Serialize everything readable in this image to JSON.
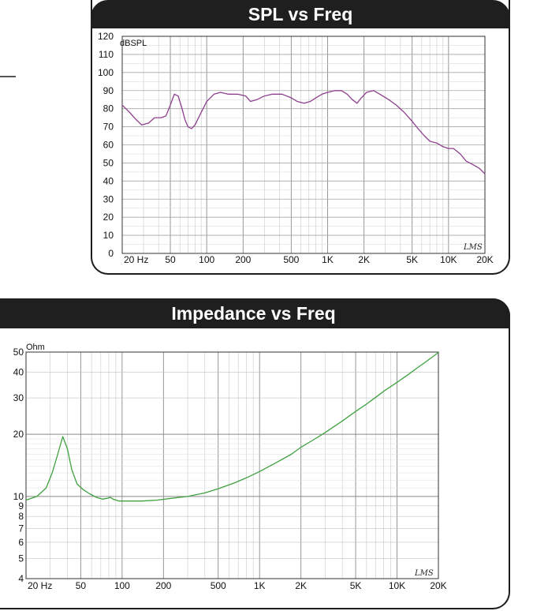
{
  "chart_data": [
    {
      "type": "line",
      "title": "SPL vs Freq",
      "ylabel": "dBSPL",
      "xlabel": "",
      "xscale": "log",
      "xlim": [
        20,
        20000
      ],
      "ylim": [
        0,
        120
      ],
      "grid": true,
      "xticks": [
        {
          "v": 20,
          "label": "20  Hz"
        },
        {
          "v": 50,
          "label": "50"
        },
        {
          "v": 100,
          "label": "100"
        },
        {
          "v": 200,
          "label": "200"
        },
        {
          "v": 500,
          "label": "500"
        },
        {
          "v": 1000,
          "label": "1K"
        },
        {
          "v": 2000,
          "label": "2K"
        },
        {
          "v": 5000,
          "label": "5K"
        },
        {
          "v": 10000,
          "label": "10K"
        },
        {
          "v": 20000,
          "label": "20K"
        }
      ],
      "yticks": [
        {
          "v": 0,
          "label": "0"
        },
        {
          "v": 10,
          "label": "10"
        },
        {
          "v": 20,
          "label": "20"
        },
        {
          "v": 30,
          "label": "30"
        },
        {
          "v": 40,
          "label": "40"
        },
        {
          "v": 50,
          "label": "50"
        },
        {
          "v": 60,
          "label": "60"
        },
        {
          "v": 70,
          "label": "70"
        },
        {
          "v": 80,
          "label": "80"
        },
        {
          "v": 90,
          "label": "90"
        },
        {
          "v": 100,
          "label": "100"
        },
        {
          "v": 110,
          "label": "110"
        },
        {
          "v": 120,
          "label": "120"
        }
      ],
      "series": [
        {
          "color": "#8e3f8e",
          "points": [
            [
              20,
              82
            ],
            [
              23,
              78
            ],
            [
              26,
              74
            ],
            [
              29,
              71
            ],
            [
              33,
              72
            ],
            [
              37,
              75
            ],
            [
              42,
              75
            ],
            [
              46,
              76
            ],
            [
              50,
              82
            ],
            [
              54,
              88
            ],
            [
              58,
              87
            ],
            [
              62,
              81
            ],
            [
              66,
              74
            ],
            [
              70,
              70
            ],
            [
              75,
              69
            ],
            [
              80,
              71
            ],
            [
              90,
              78
            ],
            [
              100,
              84
            ],
            [
              115,
              88
            ],
            [
              130,
              89
            ],
            [
              150,
              88
            ],
            [
              180,
              88
            ],
            [
              210,
              87
            ],
            [
              230,
              84
            ],
            [
              260,
              85
            ],
            [
              300,
              87
            ],
            [
              350,
              88
            ],
            [
              420,
              88
            ],
            [
              500,
              86
            ],
            [
              560,
              84
            ],
            [
              640,
              83
            ],
            [
              720,
              84
            ],
            [
              800,
              86
            ],
            [
              900,
              88
            ],
            [
              1000,
              89
            ],
            [
              1150,
              90
            ],
            [
              1300,
              90
            ],
            [
              1450,
              88
            ],
            [
              1600,
              85
            ],
            [
              1750,
              83
            ],
            [
              1900,
              86
            ],
            [
              2100,
              89
            ],
            [
              2400,
              90
            ],
            [
              2700,
              88
            ],
            [
              3200,
              85
            ],
            [
              3700,
              82
            ],
            [
              4300,
              78
            ],
            [
              5000,
              73
            ],
            [
              5600,
              69
            ],
            [
              6300,
              65
            ],
            [
              7000,
              62
            ],
            [
              8000,
              61
            ],
            [
              9000,
              59
            ],
            [
              10000,
              58
            ],
            [
              11000,
              58
            ],
            [
              12500,
              55
            ],
            [
              14000,
              51
            ],
            [
              16000,
              49
            ],
            [
              18000,
              47
            ],
            [
              20000,
              44
            ]
          ]
        }
      ],
      "logo": "LMS"
    },
    {
      "type": "line",
      "title": "Impedance vs Freq",
      "ylabel": "Ohm",
      "xlabel": "",
      "xscale": "log",
      "yscale": "log",
      "xlim": [
        20,
        20000
      ],
      "ylim": [
        4,
        50
      ],
      "grid": true,
      "xticks": [
        {
          "v": 20,
          "label": "20  Hz"
        },
        {
          "v": 50,
          "label": "50"
        },
        {
          "v": 100,
          "label": "100"
        },
        {
          "v": 200,
          "label": "200"
        },
        {
          "v": 500,
          "label": "500"
        },
        {
          "v": 1000,
          "label": "1K"
        },
        {
          "v": 2000,
          "label": "2K"
        },
        {
          "v": 5000,
          "label": "5K"
        },
        {
          "v": 10000,
          "label": "10K"
        },
        {
          "v": 20000,
          "label": "20K"
        }
      ],
      "yticks": [
        {
          "v": 4,
          "label": "4"
        },
        {
          "v": 5,
          "label": "5"
        },
        {
          "v": 6,
          "label": "6"
        },
        {
          "v": 7,
          "label": "7"
        },
        {
          "v": 8,
          "label": "8"
        },
        {
          "v": 9,
          "label": "9"
        },
        {
          "v": 10,
          "label": "10"
        },
        {
          "v": 20,
          "label": "20"
        },
        {
          "v": 30,
          "label": "30"
        },
        {
          "v": 40,
          "label": "40"
        },
        {
          "v": 50,
          "label": "50"
        }
      ],
      "series": [
        {
          "color": "#3fa03f",
          "points": [
            [
              20,
              9.6
            ],
            [
              24,
              10
            ],
            [
              28,
              11
            ],
            [
              31,
              13
            ],
            [
              34,
              16
            ],
            [
              37,
              19.5
            ],
            [
              40,
              17
            ],
            [
              43,
              13.5
            ],
            [
              47,
              11.5
            ],
            [
              52,
              10.8
            ],
            [
              58,
              10.3
            ],
            [
              65,
              9.9
            ],
            [
              72,
              9.7
            ],
            [
              78,
              9.8
            ],
            [
              82,
              9.9
            ],
            [
              86,
              9.7
            ],
            [
              95,
              9.5
            ],
            [
              110,
              9.5
            ],
            [
              140,
              9.5
            ],
            [
              180,
              9.6
            ],
            [
              230,
              9.8
            ],
            [
              300,
              10
            ],
            [
              400,
              10.4
            ],
            [
              500,
              10.9
            ],
            [
              650,
              11.6
            ],
            [
              800,
              12.3
            ],
            [
              1000,
              13.2
            ],
            [
              1300,
              14.5
            ],
            [
              1700,
              16
            ],
            [
              2000,
              17.3
            ],
            [
              2500,
              18.9
            ],
            [
              3000,
              20.4
            ],
            [
              4000,
              23.2
            ],
            [
              5000,
              25.8
            ],
            [
              6000,
              28
            ],
            [
              7000,
              30.2
            ],
            [
              8000,
              32.3
            ],
            [
              10000,
              35.7
            ],
            [
              12000,
              38.8
            ],
            [
              14000,
              41.9
            ],
            [
              16000,
              44.6
            ],
            [
              18000,
              47.2
            ],
            [
              20000,
              49.8
            ]
          ]
        }
      ],
      "logo": "LMS"
    }
  ]
}
